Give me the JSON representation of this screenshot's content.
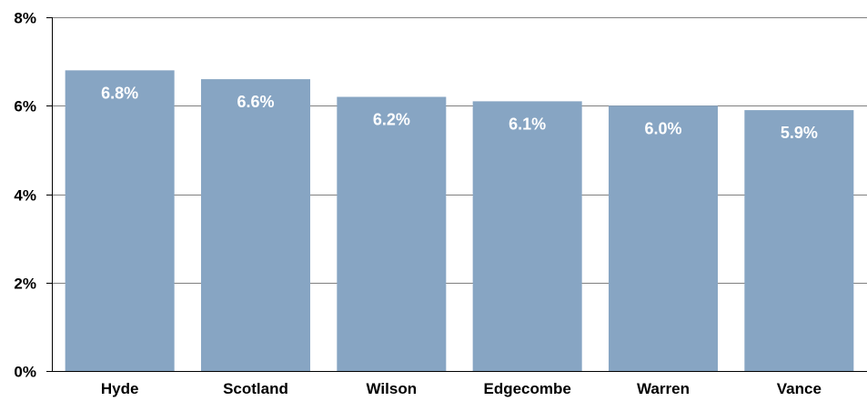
{
  "chart_data": {
    "type": "bar",
    "categories": [
      "Hyde",
      "Scotland",
      "Wilson",
      "Edgecombe",
      "Warren",
      "Vance"
    ],
    "values": [
      6.8,
      6.6,
      6.2,
      6.1,
      6.0,
      5.9
    ],
    "data_labels": [
      "6.8%",
      "6.6%",
      "6.2%",
      "6.1%",
      "6.0%",
      "5.9%"
    ],
    "yticks": [
      0,
      2,
      4,
      6,
      8
    ],
    "ytick_labels": [
      "0%",
      "2%",
      "4%",
      "6%",
      "8%"
    ],
    "ylim": [
      0,
      8
    ],
    "title": "",
    "xlabel": "",
    "ylabel": "",
    "grid": true,
    "legend": "none",
    "colors": {
      "bar": "#87A5C3",
      "grid": "#808080",
      "axis": "#000000",
      "data_label": "#ffffff"
    }
  }
}
